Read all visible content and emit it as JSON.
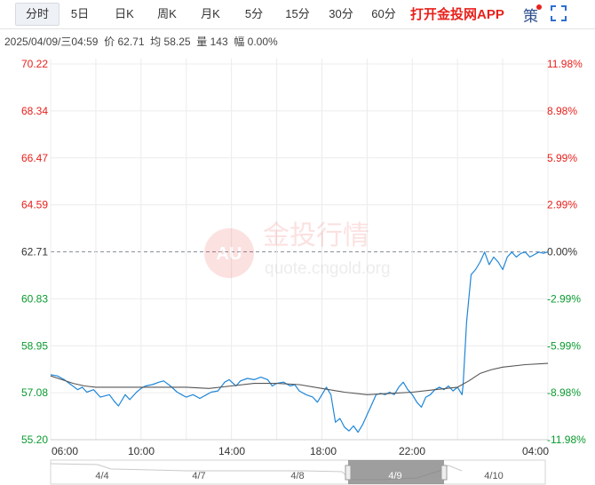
{
  "tabs": [
    {
      "label": "分时",
      "active": true
    },
    {
      "label": "5日"
    },
    {
      "label": "日K"
    },
    {
      "label": "周K"
    },
    {
      "label": "月K"
    },
    {
      "label": "5分"
    },
    {
      "label": "15分"
    },
    {
      "label": "30分"
    },
    {
      "label": "60分"
    }
  ],
  "toolbar": {
    "app_link": "打开金投网APP",
    "strategy_label": "策",
    "fullscreen_icon": "fullscreen-icon"
  },
  "info": {
    "datetime": "2025/04/09/三04:59",
    "price_label": "价",
    "price": "62.71",
    "avg_label": "均",
    "avg": "58.25",
    "volume_label": "量",
    "volume": "143",
    "change_label": "幅",
    "change": "0.00%"
  },
  "watermark": {
    "logo": "AU",
    "name": "金投行情",
    "url": "quote.cngold.org"
  },
  "colors": {
    "price_line": "#1f86d8",
    "avg_line": "#555555",
    "up": "#e8211c",
    "down": "#0a9a2f",
    "grid": "#ececec"
  },
  "chart_data": {
    "type": "line",
    "ref_price": 62.71,
    "ylim": [
      55.2,
      70.22
    ],
    "y_ticks": [
      "70.22",
      "68.34",
      "66.47",
      "64.59",
      "62.71",
      "60.83",
      "58.95",
      "57.08",
      "55.20"
    ],
    "y_ticks_right": [
      "11.98%",
      "8.98%",
      "5.99%",
      "2.99%",
      "0.00%",
      "-2.99%",
      "-5.99%",
      "-8.98%",
      "-11.98%"
    ],
    "x_ticks": [
      "06:00",
      "10:00",
      "14:00",
      "18:00",
      "22:00",
      "04:00"
    ],
    "x_range_hours": [
      0,
      22
    ],
    "series": [
      {
        "key": "price",
        "points": [
          [
            0,
            57.8
          ],
          [
            0.3,
            57.75
          ],
          [
            0.6,
            57.6
          ],
          [
            0.9,
            57.4
          ],
          [
            1.2,
            57.2
          ],
          [
            1.4,
            57.3
          ],
          [
            1.6,
            57.1
          ],
          [
            1.9,
            57.2
          ],
          [
            2.2,
            56.9
          ],
          [
            2.6,
            57.0
          ],
          [
            2.8,
            56.75
          ],
          [
            3.0,
            56.55
          ],
          [
            3.3,
            57.0
          ],
          [
            3.5,
            56.8
          ],
          [
            3.8,
            57.1
          ],
          [
            4.0,
            57.25
          ],
          [
            4.2,
            57.35
          ],
          [
            4.5,
            57.4
          ],
          [
            4.8,
            57.5
          ],
          [
            5.0,
            57.55
          ],
          [
            5.3,
            57.35
          ],
          [
            5.6,
            57.1
          ],
          [
            5.8,
            57.0
          ],
          [
            6.0,
            56.9
          ],
          [
            6.3,
            57.0
          ],
          [
            6.6,
            56.85
          ],
          [
            6.9,
            57.0
          ],
          [
            7.1,
            57.1
          ],
          [
            7.4,
            57.15
          ],
          [
            7.7,
            57.5
          ],
          [
            7.9,
            57.6
          ],
          [
            8.2,
            57.35
          ],
          [
            8.4,
            57.55
          ],
          [
            8.7,
            57.65
          ],
          [
            9.0,
            57.6
          ],
          [
            9.3,
            57.7
          ],
          [
            9.6,
            57.6
          ],
          [
            9.8,
            57.35
          ],
          [
            10.0,
            57.45
          ],
          [
            10.3,
            57.5
          ],
          [
            10.6,
            57.35
          ],
          [
            10.8,
            57.4
          ],
          [
            11.0,
            57.15
          ],
          [
            11.3,
            57.0
          ],
          [
            11.6,
            56.9
          ],
          [
            11.8,
            56.7
          ],
          [
            12.0,
            57.0
          ],
          [
            12.2,
            57.3
          ],
          [
            12.4,
            57.0
          ],
          [
            12.6,
            55.9
          ],
          [
            12.8,
            56.05
          ],
          [
            13.0,
            55.7
          ],
          [
            13.2,
            55.55
          ],
          [
            13.4,
            55.75
          ],
          [
            13.6,
            55.5
          ],
          [
            13.8,
            55.8
          ],
          [
            14.0,
            56.2
          ],
          [
            14.2,
            56.6
          ],
          [
            14.4,
            57.0
          ],
          [
            14.6,
            57.05
          ],
          [
            14.8,
            57.0
          ],
          [
            15.0,
            57.1
          ],
          [
            15.2,
            57.0
          ],
          [
            15.4,
            57.3
          ],
          [
            15.6,
            57.5
          ],
          [
            15.8,
            57.2
          ],
          [
            16.0,
            57.0
          ],
          [
            16.2,
            56.7
          ],
          [
            16.4,
            56.5
          ],
          [
            16.6,
            56.9
          ],
          [
            16.8,
            57.0
          ],
          [
            17.0,
            57.2
          ],
          [
            17.2,
            57.3
          ],
          [
            17.4,
            57.2
          ],
          [
            17.6,
            57.35
          ],
          [
            17.8,
            57.15
          ],
          [
            18.0,
            57.3
          ],
          [
            18.2,
            57.0
          ],
          [
            18.25,
            57.4
          ],
          [
            18.4,
            59.9
          ],
          [
            18.6,
            61.8
          ],
          [
            18.8,
            62.0
          ],
          [
            19.0,
            62.3
          ],
          [
            19.2,
            62.7
          ],
          [
            19.4,
            62.2
          ],
          [
            19.6,
            62.5
          ],
          [
            19.8,
            62.3
          ],
          [
            20.0,
            62.0
          ],
          [
            20.2,
            62.5
          ],
          [
            20.4,
            62.7
          ],
          [
            20.6,
            62.5
          ],
          [
            20.8,
            62.65
          ],
          [
            21.0,
            62.7
          ],
          [
            21.2,
            62.5
          ],
          [
            21.4,
            62.6
          ],
          [
            21.6,
            62.7
          ],
          [
            21.8,
            62.65
          ],
          [
            22.0,
            62.71
          ]
        ]
      },
      {
        "key": "avg",
        "points": [
          [
            0,
            57.75
          ],
          [
            0.5,
            57.6
          ],
          [
            1.0,
            57.45
          ],
          [
            1.5,
            57.35
          ],
          [
            2.0,
            57.3
          ],
          [
            3.0,
            57.3
          ],
          [
            4.0,
            57.3
          ],
          [
            5.0,
            57.3
          ],
          [
            6.0,
            57.3
          ],
          [
            7.0,
            57.25
          ],
          [
            8.0,
            57.35
          ],
          [
            9.0,
            57.45
          ],
          [
            10.0,
            57.45
          ],
          [
            11.0,
            57.4
          ],
          [
            12.0,
            57.25
          ],
          [
            13.0,
            57.1
          ],
          [
            14.0,
            57.0
          ],
          [
            15.0,
            57.05
          ],
          [
            16.0,
            57.1
          ],
          [
            17.0,
            57.2
          ],
          [
            18.0,
            57.3
          ],
          [
            18.5,
            57.55
          ],
          [
            19.0,
            57.85
          ],
          [
            19.5,
            58.0
          ],
          [
            20.0,
            58.1
          ],
          [
            21.0,
            58.2
          ],
          [
            22.0,
            58.25
          ]
        ]
      }
    ]
  },
  "navigator": {
    "dates": [
      "4/4",
      "4/7",
      "4/8",
      "4/9",
      "4/10"
    ],
    "selected": "4/9"
  }
}
